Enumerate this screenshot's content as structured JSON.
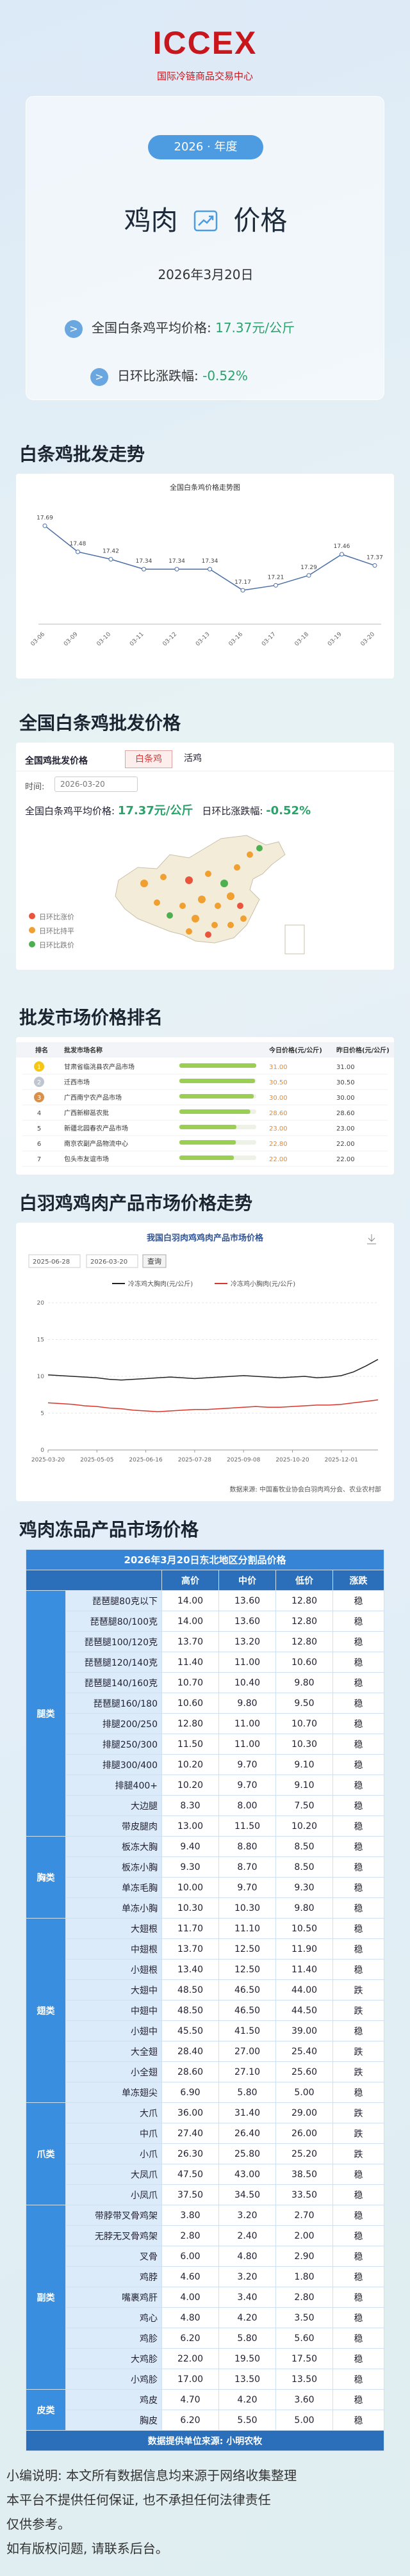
{
  "header": {
    "logo": "ICCEX",
    "org": "国际冷链商品交易中心"
  },
  "summary": {
    "year": "2026 · 年度",
    "product": "鸡肉",
    "suffix": "价格",
    "date": "2026年3月20日",
    "avg_label": "全国白条鸡平均价格:",
    "avg_value": "17.37元/公斤",
    "change_label": "日环比涨跌幅:",
    "change_value": "-0.52%"
  },
  "sections": [
    "白条鸡批发走势",
    "全国白条鸡批发价格",
    "批发市场价格排名",
    "白羽鸡鸡肉产品市场价格走势",
    "鸡肉冻品产品市场价格"
  ],
  "chart_data": [
    {
      "type": "line",
      "title": "全国白条鸡价格走势图",
      "categories": [
        "03-06",
        "03-09",
        "03-10",
        "03-11",
        "03-12",
        "03-13",
        "03-16",
        "03-17",
        "03-18",
        "03-19",
        "03-20"
      ],
      "values": [
        17.69,
        17.48,
        17.42,
        17.34,
        17.34,
        17.34,
        17.17,
        17.21,
        17.29,
        17.46,
        17.37
      ],
      "color": "#4a6fa5",
      "ylim": [
        17,
        17.8
      ]
    },
    {
      "type": "line",
      "title": "我国白羽肉鸡鸡肉产品市场价格",
      "date_from": "2025-06-28",
      "date_to": "2026-03-20",
      "query_button": "查询",
      "source": "数据来源: 中国畜牧业协会白羽肉鸡分会、农业农村部",
      "categories": [
        "2025-03-20",
        null,
        null,
        null,
        "2025-05-05",
        null,
        null,
        null,
        "2025-06-16",
        null,
        null,
        null,
        "2025-07-28",
        null,
        null,
        null,
        "2025-09-08",
        null,
        null,
        null,
        "2025-10-20",
        null,
        null,
        null,
        "2025-12-01",
        null,
        null,
        null
      ],
      "series": [
        {
          "name": "冷冻鸡大胸肉(元/公斤)",
          "color": "#222222",
          "values": [
            10.2,
            10.1,
            10,
            9.9,
            9.8,
            9.6,
            9.5,
            9.6,
            9.7,
            9.8,
            9.9,
            9.8,
            9.7,
            9.8,
            9.9,
            10,
            10.1,
            10,
            9.9,
            9.8,
            9.9,
            10,
            9.8,
            9.9,
            10.1,
            10.6,
            11.4,
            12.3
          ]
        },
        {
          "name": "冷冻鸡小胸肉(元/公斤)",
          "color": "#d9352b",
          "values": [
            6.4,
            6.3,
            6.2,
            6,
            5.9,
            5.7,
            5.6,
            5.4,
            5.3,
            5.2,
            5.3,
            5.4,
            5.5,
            5.5,
            5.6,
            5.7,
            5.8,
            5.9,
            5.8,
            5.8,
            5.9,
            6,
            6.1,
            6.1,
            6.2,
            6.4,
            6.6,
            6.8
          ]
        }
      ],
      "ylim": [
        0,
        20
      ],
      "yticks": [
        0,
        5,
        10,
        15,
        20
      ],
      "grid": true
    }
  ],
  "map_panel": {
    "title": "全国鸡批发价格",
    "tabs": [
      "白条鸡",
      "活鸡"
    ],
    "time_label": "时间:",
    "date": "2026-03-20",
    "legend": [
      {
        "label": "日环比涨价",
        "color": "#e8553c"
      },
      {
        "label": "日环比持平",
        "color": "#f0a030"
      },
      {
        "label": "日环比跌价",
        "color": "#4caf50"
      }
    ]
  },
  "ranking": {
    "header": [
      "排名",
      "批发市场名称",
      "今日价格(元/公斤)",
      "昨日价格(元/公斤)"
    ],
    "rows": [
      [
        "1",
        "甘肃省临洮县农产品市场",
        "31.00",
        "31.00"
      ],
      [
        "2",
        "迁西市场",
        "30.50",
        "30.50"
      ],
      [
        "3",
        "广西南宁农产品市场",
        "30.00",
        "30.00"
      ],
      [
        "4",
        "广西新柳邕农批",
        "28.60",
        "28.60"
      ],
      [
        "5",
        "新疆北园春农产品市场",
        "23.00",
        "23.00"
      ],
      [
        "6",
        "南京农副产品物流中心",
        "22.80",
        "22.00"
      ],
      [
        "7",
        "包头市友谊市场",
        "22.00",
        "22.00"
      ]
    ]
  },
  "frozen_table": {
    "title": "2026年3月20日东北地区分割品价格",
    "header": [
      "高价",
      "中价",
      "低价",
      "涨跌"
    ],
    "groups": [
      {
        "name": "腿类",
        "rows": [
          [
            "琵琶腿80克以下",
            "14.00",
            "13.60",
            "12.80",
            "稳"
          ],
          [
            "琵琶腿80/100克",
            "14.00",
            "13.60",
            "12.80",
            "稳"
          ],
          [
            "琵琶腿100/120克",
            "13.70",
            "13.20",
            "12.80",
            "稳"
          ],
          [
            "琵琶腿120/140克",
            "11.40",
            "11.00",
            "10.60",
            "稳"
          ],
          [
            "琵琶腿140/160克",
            "10.70",
            "10.40",
            "9.80",
            "稳"
          ],
          [
            "琵琶腿160/180",
            "10.60",
            "9.80",
            "9.50",
            "稳"
          ],
          [
            "排腿200/250",
            "12.80",
            "11.00",
            "10.70",
            "稳"
          ],
          [
            "排腿250/300",
            "11.50",
            "11.00",
            "10.30",
            "稳"
          ],
          [
            "排腿300/400",
            "10.20",
            "9.70",
            "9.10",
            "稳"
          ],
          [
            "排腿400+",
            "10.20",
            "9.70",
            "9.10",
            "稳"
          ],
          [
            "大边腿",
            "8.30",
            "8.00",
            "7.50",
            "稳"
          ],
          [
            "带皮腿肉",
            "13.00",
            "11.50",
            "10.20",
            "稳"
          ]
        ]
      },
      {
        "name": "胸类",
        "rows": [
          [
            "板冻大胸",
            "9.40",
            "8.80",
            "8.50",
            "稳"
          ],
          [
            "板冻小胸",
            "9.30",
            "8.70",
            "8.50",
            "稳"
          ],
          [
            "单冻毛胸",
            "10.00",
            "9.70",
            "9.30",
            "稳"
          ],
          [
            "单冻小胸",
            "10.30",
            "10.30",
            "9.80",
            "稳"
          ]
        ]
      },
      {
        "name": "翅类",
        "rows": [
          [
            "大翅根",
            "11.70",
            "11.10",
            "10.50",
            "稳"
          ],
          [
            "中翅根",
            "13.70",
            "12.50",
            "11.90",
            "稳"
          ],
          [
            "小翅根",
            "13.40",
            "12.50",
            "11.40",
            "稳"
          ],
          [
            "大翅中",
            "48.50",
            "46.50",
            "44.00",
            "跌"
          ],
          [
            "中翅中",
            "48.50",
            "46.50",
            "44.50",
            "跌"
          ],
          [
            "小翅中",
            "45.50",
            "41.50",
            "39.00",
            "稳"
          ],
          [
            "大全翅",
            "28.40",
            "27.00",
            "25.40",
            "跌"
          ],
          [
            "小全翅",
            "28.60",
            "27.10",
            "25.60",
            "跌"
          ],
          [
            "单冻翅尖",
            "6.90",
            "5.80",
            "5.00",
            "稳"
          ]
        ]
      },
      {
        "name": "爪类",
        "rows": [
          [
            "大爪",
            "36.00",
            "31.40",
            "29.00",
            "跌"
          ],
          [
            "中爪",
            "27.40",
            "26.40",
            "26.00",
            "跌"
          ],
          [
            "小爪",
            "26.30",
            "25.80",
            "25.20",
            "跌"
          ],
          [
            "大凤爪",
            "47.50",
            "43.00",
            "38.50",
            "稳"
          ],
          [
            "小凤爪",
            "37.50",
            "34.50",
            "33.50",
            "稳"
          ]
        ]
      },
      {
        "name": "副类",
        "rows": [
          [
            "带脖带叉骨鸡架",
            "3.80",
            "3.20",
            "2.70",
            "稳"
          ],
          [
            "无脖无叉骨鸡架",
            "2.80",
            "2.40",
            "2.00",
            "稳"
          ],
          [
            "叉骨",
            "6.00",
            "4.80",
            "2.90",
            "稳"
          ],
          [
            "鸡脖",
            "4.60",
            "3.20",
            "1.80",
            "稳"
          ],
          [
            "嘴裹鸡肝",
            "4.00",
            "3.40",
            "2.80",
            "稳"
          ],
          [
            "鸡心",
            "4.80",
            "4.20",
            "3.50",
            "稳"
          ],
          [
            "鸡胗",
            "6.20",
            "5.80",
            "5.60",
            "稳"
          ],
          [
            "大鸡胗",
            "22.00",
            "19.50",
            "17.50",
            "稳"
          ],
          [
            "小鸡胗",
            "17.00",
            "13.50",
            "13.50",
            "稳"
          ]
        ]
      },
      {
        "name": "皮类",
        "rows": [
          [
            "鸡皮",
            "4.70",
            "4.20",
            "3.60",
            "稳"
          ],
          [
            "胸皮",
            "6.20",
            "5.50",
            "5.00",
            "稳"
          ]
        ]
      }
    ],
    "footer": "数据提供单位来源: 小明农牧"
  },
  "notes": [
    "小编说明: 本文所有数据信息均来源于网络收集整理",
    "本平台不提供任何保证, 也不承担任何法律责任",
    "仅供参考。",
    "如有版权问题, 请联系后台。"
  ]
}
